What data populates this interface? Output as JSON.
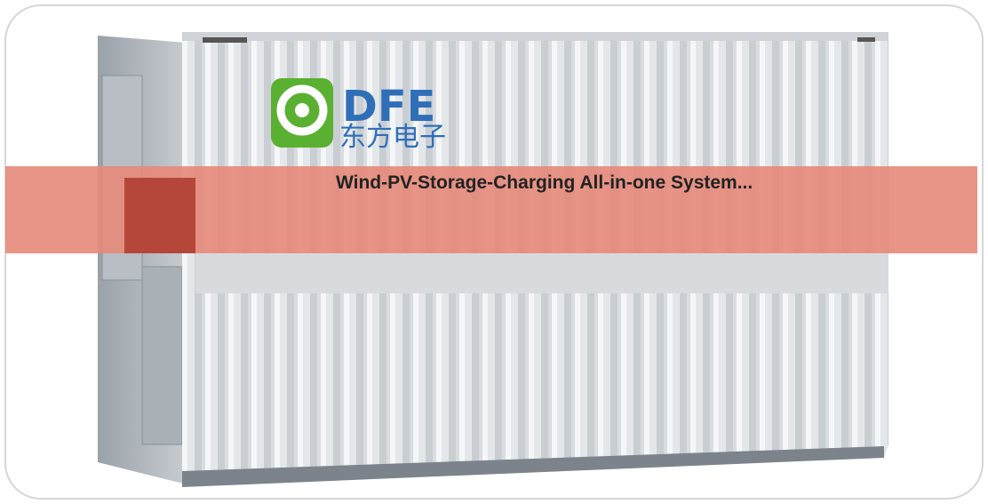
{
  "logo": {
    "name": "DFE",
    "chinese": "东方电子"
  },
  "caption": "Wind-PV-Storage-Charging All-in-one System..."
}
